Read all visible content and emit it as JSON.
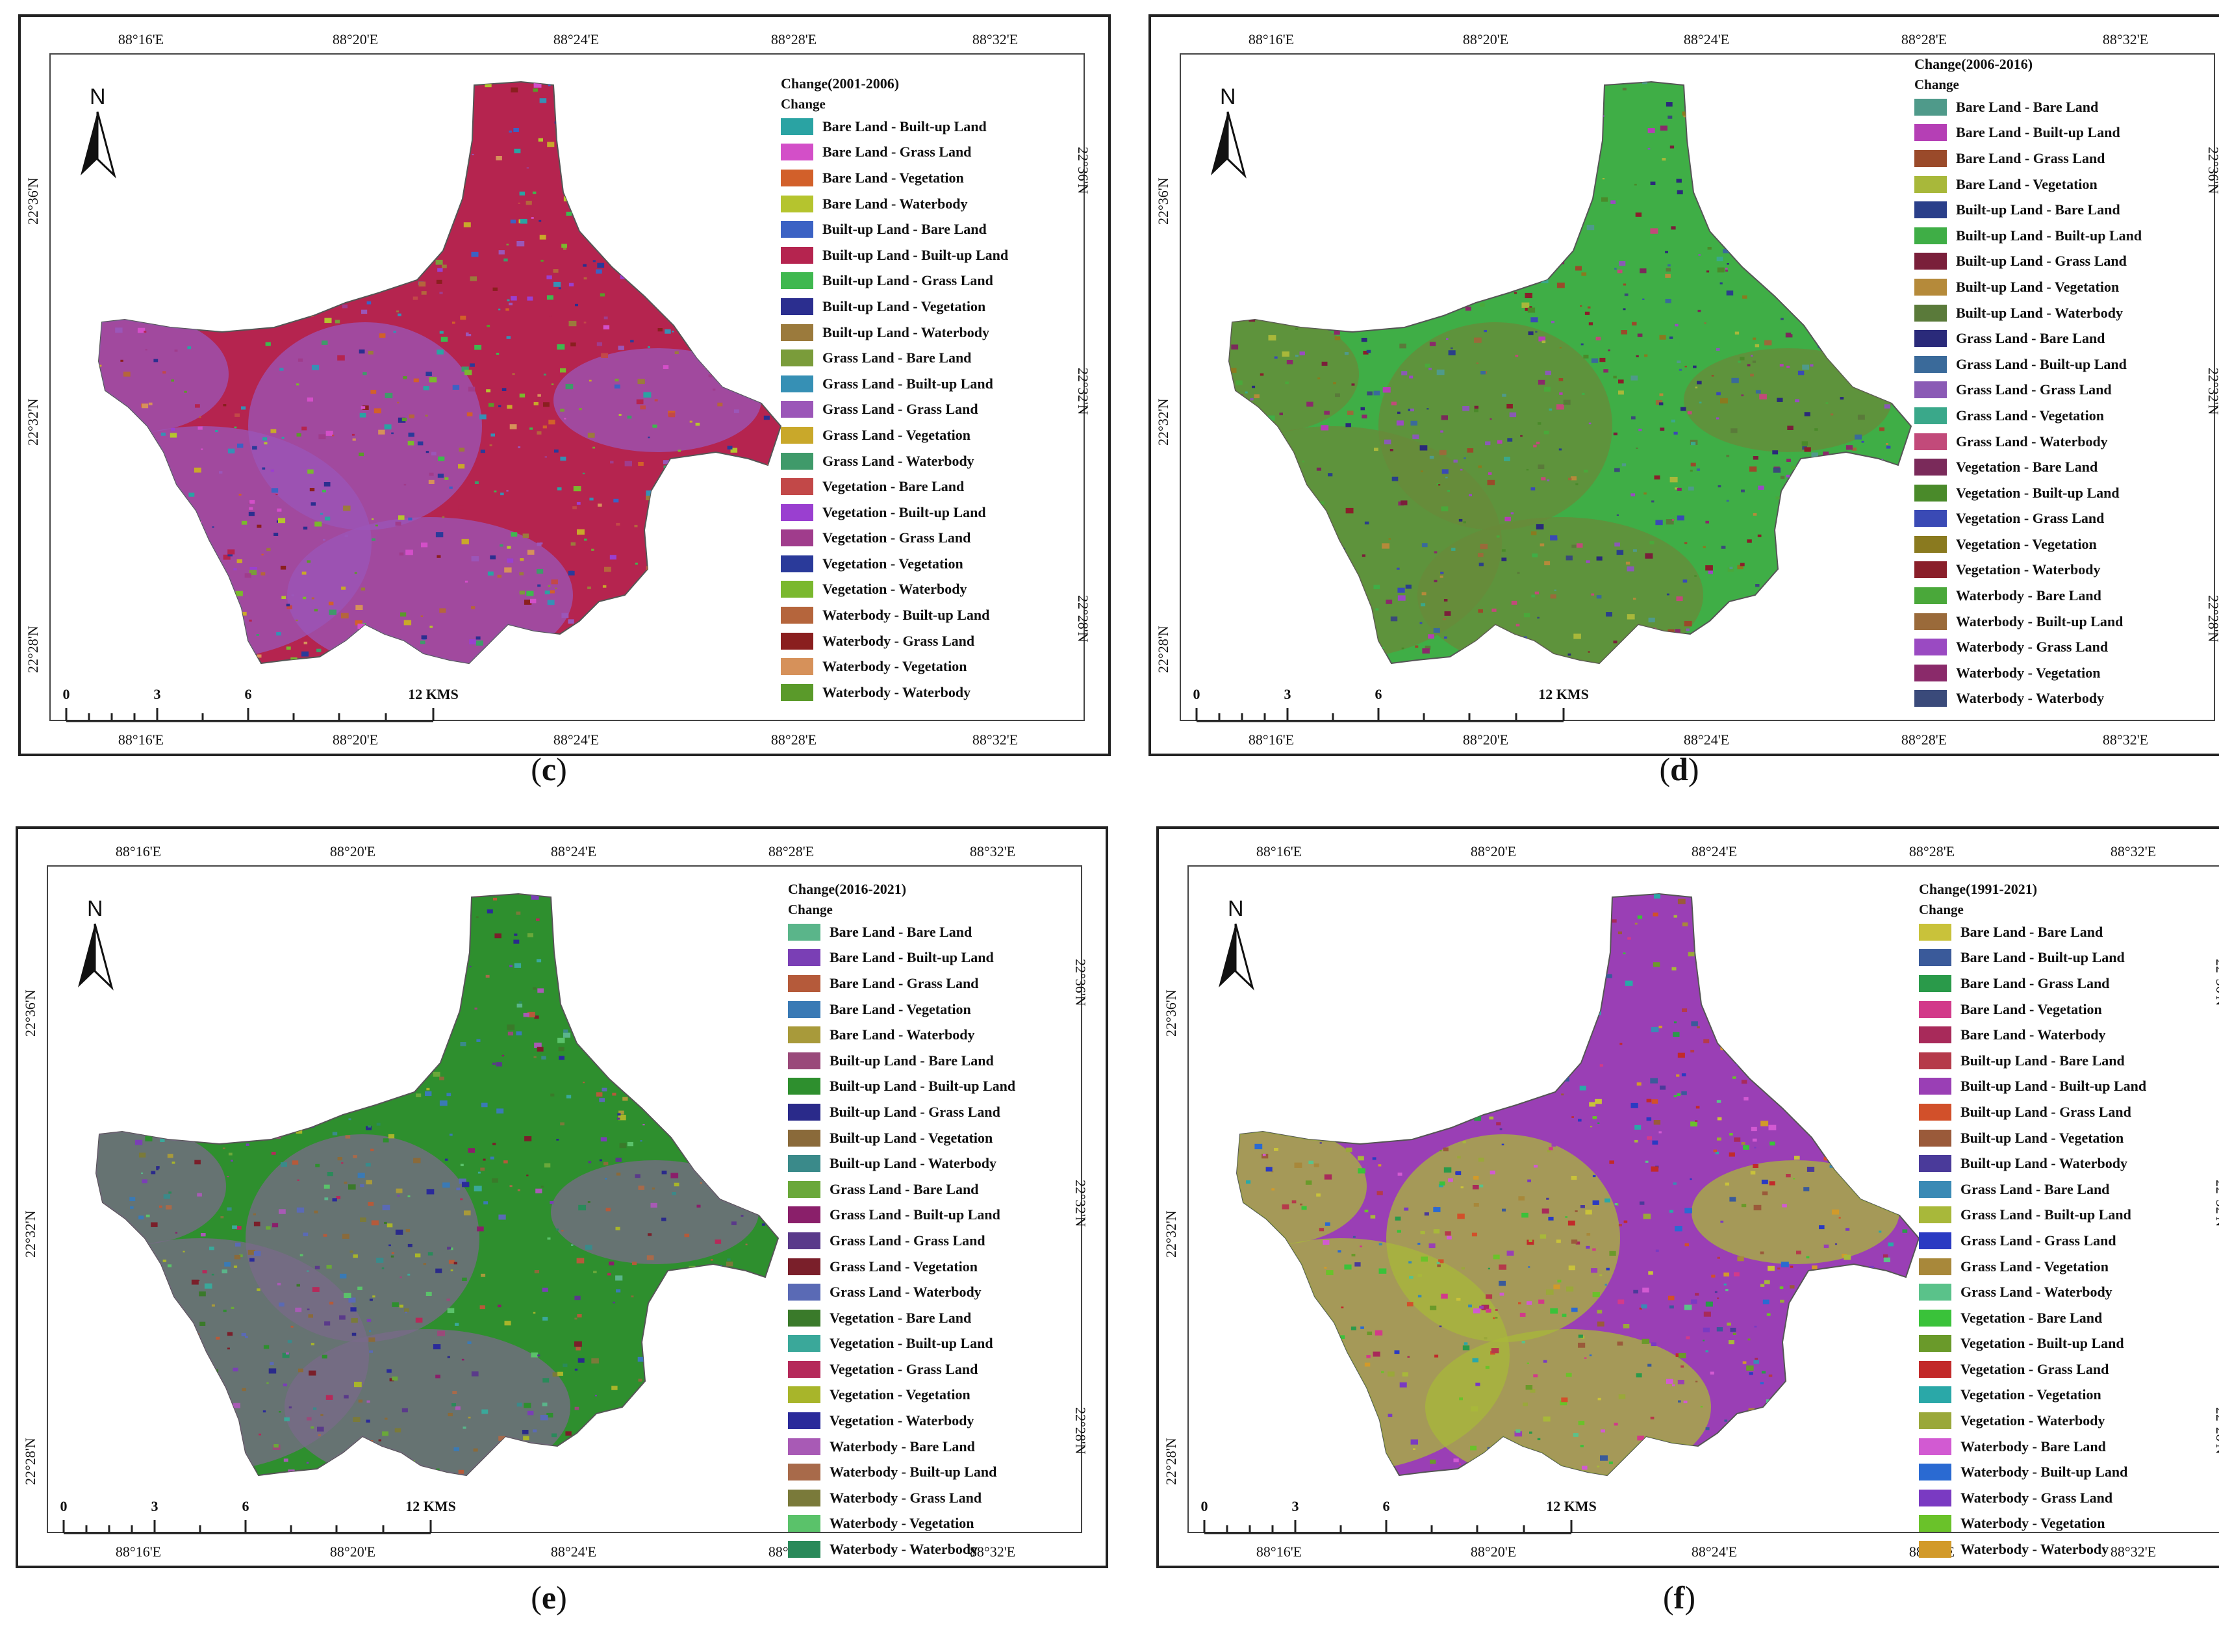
{
  "panels": [
    {
      "id": "c",
      "caption_letter": "c",
      "legend_title": "Change(2001-2006)",
      "legend_subtitle": "Change",
      "dominant_color": "#b5244f",
      "secondary_color": "#9b56b8",
      "items": [
        {
          "label": "Bare Land - Built-up Land",
          "color": "#2aa3a3"
        },
        {
          "label": "Bare Land - Grass Land",
          "color": "#d34fc8"
        },
        {
          "label": "Bare Land - Vegetation",
          "color": "#d2602a"
        },
        {
          "label": "Bare Land - Waterbody",
          "color": "#b5c42e"
        },
        {
          "label": "Built-up Land - Bare Land",
          "color": "#3b62c4"
        },
        {
          "label": "Built-up Land - Built-up Land",
          "color": "#b5244f"
        },
        {
          "label": "Built-up Land - Grass Land",
          "color": "#3fb84f"
        },
        {
          "label": "Built-up Land - Vegetation",
          "color": "#2b2e8f"
        },
        {
          "label": "Built-up Land - Waterbody",
          "color": "#9b7a3c"
        },
        {
          "label": "Grass Land - Bare Land",
          "color": "#7a9c3a"
        },
        {
          "label": "Grass Land - Built-up Land",
          "color": "#3690b5"
        },
        {
          "label": "Grass Land - Grass Land",
          "color": "#9b56b8"
        },
        {
          "label": "Grass Land - Vegetation",
          "color": "#c9a82a"
        },
        {
          "label": "Grass Land - Waterbody",
          "color": "#3f9a6a"
        },
        {
          "label": "Vegetation - Bare Land",
          "color": "#c24848"
        },
        {
          "label": "Vegetation - Built-up Land",
          "color": "#9a3fd0"
        },
        {
          "label": "Vegetation - Grass Land",
          "color": "#a03c8c"
        },
        {
          "label": "Vegetation - Vegetation",
          "color": "#2a3a9a"
        },
        {
          "label": "Vegetation - Waterbody",
          "color": "#7ab82e"
        },
        {
          "label": "Waterbody - Built-up Land",
          "color": "#b5653c"
        },
        {
          "label": "Waterbody - Grass Land",
          "color": "#8a1f1f"
        },
        {
          "label": "Waterbody - Vegetation",
          "color": "#d6915a"
        },
        {
          "label": "Waterbody - Waterbody",
          "color": "#5a9a2a"
        }
      ]
    },
    {
      "id": "d",
      "caption_letter": "d",
      "legend_title": "Change(2006-2016)",
      "legend_subtitle": "Change",
      "dominant_color": "#3fae46",
      "secondary_color": "#6a8a3a",
      "items": [
        {
          "label": "Bare Land  -  Bare Land",
          "color": "#4f9a8a"
        },
        {
          "label": "Bare Land  -  Built-up Land",
          "color": "#b53fb5"
        },
        {
          "label": "Bare Land  -  Grass Land",
          "color": "#9a4a2a"
        },
        {
          "label": "Bare Land  -  Vegetation",
          "color": "#a8b83a"
        },
        {
          "label": "Built-up Land  -  Bare Land",
          "color": "#2a3f8a"
        },
        {
          "label": "Built-up Land  -  Built-up Land",
          "color": "#3fae46"
        },
        {
          "label": "Built-up Land  -  Grass Land",
          "color": "#7a1f3a"
        },
        {
          "label": "Built-up Land  -  Vegetation",
          "color": "#b58a3a"
        },
        {
          "label": "Built-up Land  -  Waterbody",
          "color": "#5a7a3a"
        },
        {
          "label": "Grass Land  -  Bare Land",
          "color": "#2a2a7a"
        },
        {
          "label": "Grass Land  -  Built-up Land",
          "color": "#3a6a9a"
        },
        {
          "label": "Grass Land  -  Grass Land",
          "color": "#8a5ab5"
        },
        {
          "label": "Grass Land  -  Vegetation",
          "color": "#3aa88a"
        },
        {
          "label": "Grass Land  -  Waterbody",
          "color": "#c24a7a"
        },
        {
          "label": "Vegetation  -  Bare Land",
          "color": "#7a2a5a"
        },
        {
          "label": "Vegetation  -  Built-up Land",
          "color": "#4a8a2a"
        },
        {
          "label": "Vegetation  -  Grass Land",
          "color": "#3a4ab5"
        },
        {
          "label": "Vegetation  -  Vegetation",
          "color": "#8a7a1f"
        },
        {
          "label": "Vegetation  -  Waterbody",
          "color": "#8a1f2a"
        },
        {
          "label": "Waterbody  -  Bare Land",
          "color": "#4aa83a"
        },
        {
          "label": "Waterbody  -  Built-up Land",
          "color": "#9a6a3a"
        },
        {
          "label": "Waterbody  -  Grass Land",
          "color": "#9a4ac2"
        },
        {
          "label": "Waterbody  -  Vegetation",
          "color": "#8a2a6a"
        },
        {
          "label": "Waterbody  -  Waterbody",
          "color": "#3a4a7a"
        }
      ]
    },
    {
      "id": "e",
      "caption_letter": "e",
      "legend_title": "Change(2016-2021)",
      "legend_subtitle": "Change",
      "dominant_color": "#2e8f2e",
      "secondary_color": "#7a6a8a",
      "items": [
        {
          "label": "Bare Land - Bare Land",
          "color": "#5ab58a"
        },
        {
          "label": "Bare Land - Built-up Land",
          "color": "#7a3fb5"
        },
        {
          "label": "Bare Land - Grass Land",
          "color": "#b55a3a"
        },
        {
          "label": "Bare Land - Vegetation",
          "color": "#3a7ab5"
        },
        {
          "label": "Bare Land - Waterbody",
          "color": "#a89a3a"
        },
        {
          "label": "Built-up Land - Bare Land",
          "color": "#9a4a7a"
        },
        {
          "label": "Built-up Land - Built-up Land",
          "color": "#2e8f2e"
        },
        {
          "label": "Built-up Land - Grass Land",
          "color": "#2a2a8a"
        },
        {
          "label": "Built-up Land - Vegetation",
          "color": "#8a6a3a"
        },
        {
          "label": "Built-up Land - Waterbody",
          "color": "#3a8a8a"
        },
        {
          "label": "Grass Land - Bare Land",
          "color": "#6aa83a"
        },
        {
          "label": "Grass Land - Built-up Land",
          "color": "#8a1f6a"
        },
        {
          "label": "Grass Land - Grass Land",
          "color": "#5a3a8a"
        },
        {
          "label": "Grass Land - Vegetation",
          "color": "#7a1f2a"
        },
        {
          "label": "Grass Land - Waterbody",
          "color": "#5a6ab5"
        },
        {
          "label": "Vegetation - Bare Land",
          "color": "#3a7a2a"
        },
        {
          "label": "Vegetation - Built-up Land",
          "color": "#3aa89a"
        },
        {
          "label": "Vegetation - Grass Land",
          "color": "#b52a5a"
        },
        {
          "label": "Vegetation - Vegetation",
          "color": "#a8b52a"
        },
        {
          "label": "Vegetation - Waterbody",
          "color": "#2a2a9a"
        },
        {
          "label": "Waterbody - Bare Land",
          "color": "#a85ab5"
        },
        {
          "label": "Waterbody - Built-up Land",
          "color": "#a86a4a"
        },
        {
          "label": "Waterbody - Grass Land",
          "color": "#7a7a3a"
        },
        {
          "label": "Waterbody - Vegetation",
          "color": "#5ac26a"
        },
        {
          "label": "Waterbody - Waterbody",
          "color": "#2a8a5a"
        }
      ]
    },
    {
      "id": "f",
      "caption_letter": "f",
      "legend_title": "Change(1991-2021)",
      "legend_subtitle": "Change",
      "dominant_color": "#9a3fb5",
      "secondary_color": "#a8b83a",
      "items": [
        {
          "label": "Bare Land - Bare Land",
          "color": "#c9c23a"
        },
        {
          "label": "Bare Land - Built-up Land",
          "color": "#3a5a9a"
        },
        {
          "label": "Bare Land - Grass Land",
          "color": "#2a9a4a"
        },
        {
          "label": "Bare Land - Vegetation",
          "color": "#d23a8a"
        },
        {
          "label": "Bare Land - Waterbody",
          "color": "#a82a5a"
        },
        {
          "label": "Built-up Land - Bare Land",
          "color": "#b53a4a"
        },
        {
          "label": "Built-up Land - Built-up Land",
          "color": "#9a3fb5"
        },
        {
          "label": "Built-up Land - Grass Land",
          "color": "#d2502a"
        },
        {
          "label": "Built-up Land - Vegetation",
          "color": "#9a5a3a"
        },
        {
          "label": "Built-up Land - Waterbody",
          "color": "#4a3a9a"
        },
        {
          "label": "Grass Land - Bare Land",
          "color": "#3a8ab5"
        },
        {
          "label": "Grass Land - Built-up Land",
          "color": "#a8b83a"
        },
        {
          "label": "Grass Land - Grass Land",
          "color": "#2a3ac2"
        },
        {
          "label": "Grass Land - Vegetation",
          "color": "#a8883a"
        },
        {
          "label": "Grass Land - Waterbody",
          "color": "#5ac28a"
        },
        {
          "label": "Vegetation - Bare Land",
          "color": "#3ac23a"
        },
        {
          "label": "Vegetation - Built-up Land",
          "color": "#6a9a2a"
        },
        {
          "label": "Vegetation - Grass Land",
          "color": "#c22a2a"
        },
        {
          "label": "Vegetation - Vegetation",
          "color": "#2aa8a8"
        },
        {
          "label": "Vegetation - Waterbody",
          "color": "#9aa83a"
        },
        {
          "label": "Waterbody - Bare Land",
          "color": "#d25ad2"
        },
        {
          "label": "Waterbody - Built-up Land",
          "color": "#2a6ad2"
        },
        {
          "label": "Waterbody - Grass Land",
          "color": "#7a3ac2"
        },
        {
          "label": "Waterbody - Vegetation",
          "color": "#6ac22a"
        },
        {
          "label": "Waterbody - Waterbody",
          "color": "#d29a2a"
        }
      ]
    }
  ],
  "map_labels": {
    "longitudes": [
      "88°16'E",
      "88°20'E",
      "88°24'E",
      "88°28'E",
      "88°32'E"
    ],
    "latitudes": [
      "22°36'N",
      "22°32'N",
      "22°28'N"
    ],
    "north": "N",
    "scale_ticks": [
      "0",
      "3",
      "6",
      "12 KMS"
    ]
  },
  "caption_parens": [
    "(",
    ")"
  ]
}
